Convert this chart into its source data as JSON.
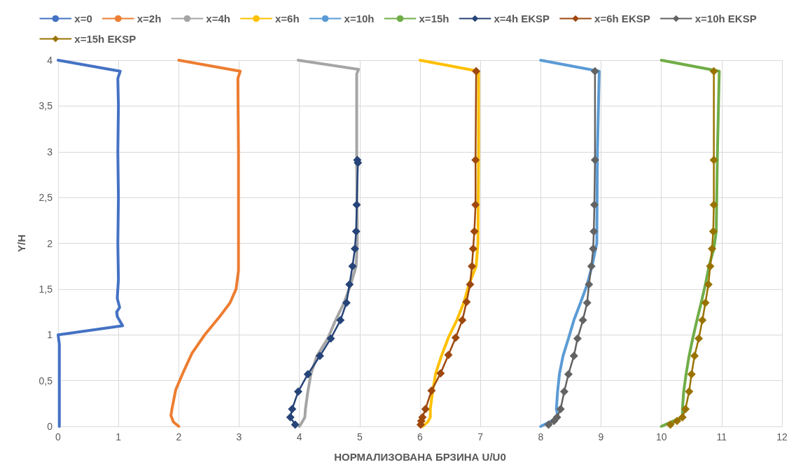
{
  "chart_data": {
    "type": "line",
    "xlabel": "НОРМАЛИЗОВАНА БРЗИНА U/U0",
    "ylabel": "Y/H",
    "xlim": [
      0,
      12
    ],
    "xticks": [
      0,
      1,
      2,
      3,
      4,
      5,
      6,
      7,
      8,
      9,
      10,
      11,
      12
    ],
    "ylim": [
      0,
      4
    ],
    "yticks": [
      0,
      {
        "value": 0.5,
        "label": "0,5"
      },
      1,
      {
        "value": 1.5,
        "label": "1,5"
      },
      2,
      {
        "value": 2.5,
        "label": "2,5"
      },
      3,
      {
        "value": 3.5,
        "label": "3,5"
      },
      4
    ],
    "grid": true,
    "legend": "top",
    "series": [
      {
        "name": "x=0",
        "color": "#4472c4",
        "marker": "none",
        "x": [
          0,
          1.03,
          0.99,
          1.0,
          0.99,
          1.0,
          0.99,
          1.0,
          0.98,
          1.02,
          0.97,
          0.98,
          1.07,
          0,
          0.02,
          0.02
        ],
        "values": [
          4,
          3.88,
          3.8,
          3.5,
          3.0,
          2.5,
          2.0,
          1.6,
          1.4,
          1.3,
          1.25,
          1.2,
          1.1,
          1.0,
          0.9,
          0
        ]
      },
      {
        "name": "x=2h",
        "color": "#ed7d31",
        "marker": "none",
        "x": [
          2.0,
          3.02,
          2.98,
          2.99,
          2.99,
          2.95,
          2.85,
          2.68,
          2.43,
          2.22,
          2.08,
          1.95,
          1.89,
          1.87,
          1.91,
          2.0
        ],
        "values": [
          4,
          3.88,
          3.8,
          3.0,
          1.7,
          1.5,
          1.35,
          1.2,
          1.0,
          0.8,
          0.6,
          0.4,
          0.2,
          0.12,
          0.05,
          0
        ]
      },
      {
        "name": "x=4h",
        "color": "#a5a5a5",
        "marker": "none",
        "x": [
          3.98,
          4.98,
          4.95,
          4.95,
          4.96,
          4.94,
          4.85,
          4.74,
          4.6,
          4.47,
          4.29,
          4.19,
          4.14,
          4.1,
          4.09,
          4.02,
          4.0
        ],
        "values": [
          4,
          3.9,
          3.85,
          2.9,
          2.0,
          1.75,
          1.55,
          1.35,
          1.16,
          0.96,
          0.77,
          0.57,
          0.38,
          0.19,
          0.1,
          0.02,
          0
        ]
      },
      {
        "name": "x=6h",
        "color": "#ffc000",
        "marker": "none",
        "x": [
          6.0,
          6.97,
          6.97,
          6.96,
          6.93,
          6.81,
          6.73,
          6.61,
          6.47,
          6.36,
          6.26,
          6.21,
          6.17,
          6.17,
          6.13,
          6.04
        ],
        "values": [
          4,
          3.88,
          3.0,
          2.0,
          1.75,
          1.55,
          1.36,
          1.16,
          0.97,
          0.78,
          0.58,
          0.39,
          0.19,
          0.1,
          0.05,
          0
        ]
      },
      {
        "name": "x=10h",
        "color": "#5b9bd5",
        "marker": "none",
        "x": [
          8.0,
          8.97,
          8.94,
          8.93,
          8.85,
          8.77,
          8.66,
          8.55,
          8.46,
          8.37,
          8.31,
          8.28,
          8.26,
          8.29,
          8.15,
          8.0
        ],
        "values": [
          4,
          3.88,
          3.0,
          2.0,
          1.75,
          1.55,
          1.35,
          1.16,
          0.96,
          0.77,
          0.57,
          0.38,
          0.19,
          0.1,
          0.05,
          0
        ]
      },
      {
        "name": "x=15h",
        "color": "#70ad47",
        "marker": "none",
        "x": [
          10.0,
          10.96,
          10.93,
          10.91,
          10.87,
          10.79,
          10.73,
          10.66,
          10.59,
          10.52,
          10.46,
          10.41,
          10.37,
          10.35,
          10.35,
          10.17,
          10.0
        ],
        "values": [
          4,
          3.88,
          3.0,
          2.13,
          1.94,
          1.75,
          1.55,
          1.35,
          1.16,
          0.96,
          0.77,
          0.57,
          0.38,
          0.19,
          0.1,
          0.05,
          0
        ]
      },
      {
        "name": "x=4h EKSP",
        "color": "#264478",
        "marker": "diamond",
        "x": [
          4.96,
          4.97,
          4.95,
          4.94,
          4.92,
          4.88,
          4.83,
          4.78,
          4.68,
          4.52,
          4.34,
          4.14,
          3.98,
          3.88,
          3.85,
          3.93
        ],
        "values": [
          2.91,
          2.88,
          2.42,
          2.13,
          1.94,
          1.75,
          1.55,
          1.35,
          1.16,
          0.96,
          0.77,
          0.57,
          0.38,
          0.19,
          0.1,
          0.02
        ]
      },
      {
        "name": "x=6h EKSP",
        "color": "#9e480e",
        "marker": "diamond",
        "x": [
          6.93,
          6.92,
          6.92,
          6.9,
          6.88,
          6.86,
          6.83,
          6.77,
          6.7,
          6.59,
          6.47,
          6.34,
          6.19,
          6.09,
          6.04,
          6.02,
          6.01
        ],
        "values": [
          3.88,
          2.91,
          2.42,
          2.13,
          1.94,
          1.75,
          1.55,
          1.36,
          1.16,
          0.97,
          0.78,
          0.58,
          0.39,
          0.19,
          0.1,
          0.06,
          0.02
        ]
      },
      {
        "name": "x=10h EKSP",
        "color": "#636363",
        "marker": "diamond",
        "x": [
          8.9,
          8.9,
          8.89,
          8.88,
          8.87,
          8.84,
          8.8,
          8.77,
          8.7,
          8.61,
          8.55,
          8.46,
          8.39,
          8.33,
          8.27,
          8.22,
          8.13
        ],
        "values": [
          3.88,
          2.91,
          2.42,
          2.13,
          1.94,
          1.75,
          1.55,
          1.35,
          1.16,
          0.96,
          0.77,
          0.57,
          0.38,
          0.19,
          0.1,
          0.06,
          0.02
        ]
      },
      {
        "name": "x=15h EKSP",
        "color": "#997300",
        "marker": "diamond",
        "x": [
          10.87,
          10.87,
          10.87,
          10.86,
          10.84,
          10.81,
          10.78,
          10.73,
          10.68,
          10.62,
          10.55,
          10.5,
          10.46,
          10.4,
          10.35,
          10.26,
          10.15
        ],
        "values": [
          3.88,
          2.91,
          2.42,
          2.13,
          1.94,
          1.75,
          1.55,
          1.35,
          1.16,
          0.96,
          0.77,
          0.57,
          0.38,
          0.19,
          0.1,
          0.06,
          0.02
        ]
      }
    ]
  }
}
